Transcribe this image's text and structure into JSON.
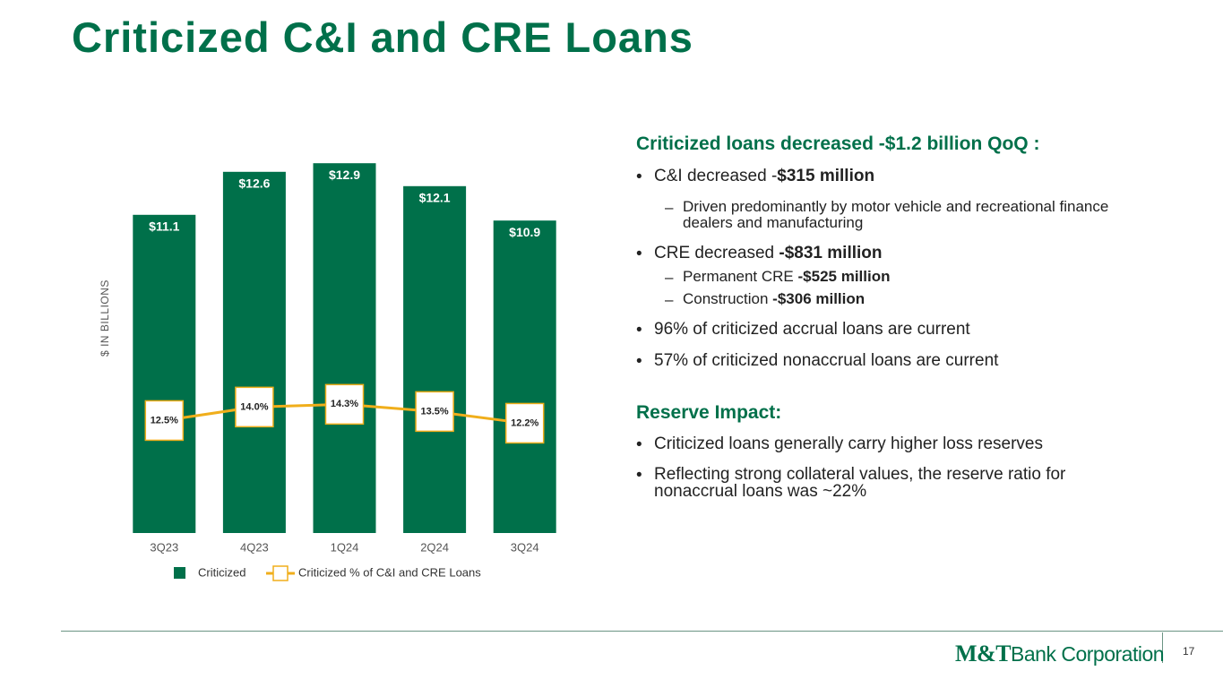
{
  "title": "Criticized C&I and CRE Loans",
  "chart_data": {
    "type": "bar",
    "axis_label": "$ IN BILLIONS",
    "categories": [
      "3Q23",
      "4Q23",
      "1Q24",
      "2Q24",
      "3Q24"
    ],
    "ylim": [
      0,
      13.5
    ],
    "y2lim": [
      0,
      43
    ],
    "series": [
      {
        "name": "Criticized",
        "color": "#00704a",
        "values": [
          11.1,
          12.6,
          12.9,
          12.1,
          10.9
        ],
        "value_labels": [
          "$11.1",
          "$12.6",
          "$12.9",
          "$12.1",
          "$10.9"
        ]
      },
      {
        "name": "Criticized % of C&I and CRE Loans",
        "type": "line",
        "axis": "y2",
        "color": "#f0ae1b",
        "values": [
          12.5,
          14.0,
          14.3,
          13.5,
          12.2
        ],
        "value_labels": [
          "12.5%",
          "14.0%",
          "14.3%",
          "13.5%",
          "12.2%"
        ]
      }
    ]
  },
  "sections": [
    {
      "heading": "Criticized loans decreased -$1.2 billion QoQ :",
      "items": [
        {
          "text": "C&I decreased -",
          "bold": "$315 million",
          "sub": [
            {
              "text": "Driven predominantly by motor vehicle and recreational finance dealers and manufacturing"
            }
          ]
        },
        {
          "text": "CRE decreased ",
          "bold": "-$831 million",
          "sub": [
            {
              "text": "Permanent CRE ",
              "bold": "-$525 million"
            },
            {
              "text": "Construction ",
              "bold": "-$306 million"
            }
          ]
        },
        {
          "text": "96% of criticized accrual loans are current"
        },
        {
          "text": "57% of criticized nonaccrual loans are current"
        }
      ]
    },
    {
      "heading": "Reserve Impact:",
      "items": [
        {
          "text": "Criticized loans generally carry higher loss reserves"
        },
        {
          "text": "Reflecting strong collateral values, the reserve ratio for nonaccrual loans was ~22%"
        }
      ]
    }
  ],
  "footer": {
    "logo_mark": "M&T",
    "logo_text": "Bank Corporation",
    "page": "17"
  }
}
